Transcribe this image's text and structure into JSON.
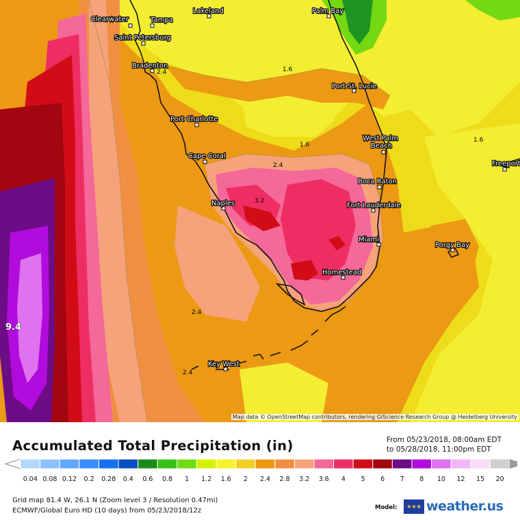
{
  "map": {
    "attribution": "Map data © OpenStreetMap contributors, rendering GIScience Research Group @ Heidelberg University",
    "cities": [
      "Clearwater",
      "Tampa",
      "Lakeland",
      "Palm Bay",
      "Saint Petersburg",
      "Bradenton",
      "Port St. Lucie",
      "Port Charlotte",
      "West Palm Beach",
      "Cape Coral",
      "Boca Raton",
      "Freeport",
      "Naples",
      "Fort Lauderdale",
      "Miami",
      "Porgy Bay",
      "Homestead",
      "Key West"
    ],
    "contour_labels": [
      "1.6",
      "1.6",
      "1.6",
      "2.4",
      "2.4",
      "2.4",
      "2.4",
      "3.2",
      "9.4"
    ]
  },
  "title": "Accumulated Total Precipitation (in)",
  "period": {
    "from": "From 05/23/2018, 08:00am EDT",
    "to": "to 05/28/2018, 11:00pm EDT"
  },
  "legend": {
    "values": [
      "0.04",
      "0.08",
      "0.12",
      "0.2",
      "0.28",
      "0.4",
      "0.6",
      "0.8",
      "1",
      "1.2",
      "1.6",
      "2",
      "2.4",
      "2.8",
      "3.2",
      "3.6",
      "4",
      "5",
      "6",
      "7",
      "8",
      "10",
      "12",
      "15",
      "20"
    ],
    "colors": [
      "#b3d7ff",
      "#8ec1ff",
      "#63a8ff",
      "#3a8eff",
      "#1670f0",
      "#0a4fc2",
      "#1b8a1b",
      "#36c217",
      "#70dc10",
      "#d2f200",
      "#f6f22c",
      "#f2d022",
      "#ee9a10",
      "#f08f42",
      "#f6a27b",
      "#f4689a",
      "#ee2e62",
      "#d20c16",
      "#a20610",
      "#6d0d86",
      "#b20bde",
      "#df72ee",
      "#f1b6f5",
      "#f8dcf7",
      "#cfcfcf"
    ]
  },
  "meta": {
    "grid": "Grid map 81.4 W, 26.1 N (Zoom level 3 / Resolution 0.47mi)",
    "model": "ECMWF/Global Euro HD (10 days) from 05/23/2018/12z",
    "model_label": "Model:",
    "brand": "weather.us"
  }
}
